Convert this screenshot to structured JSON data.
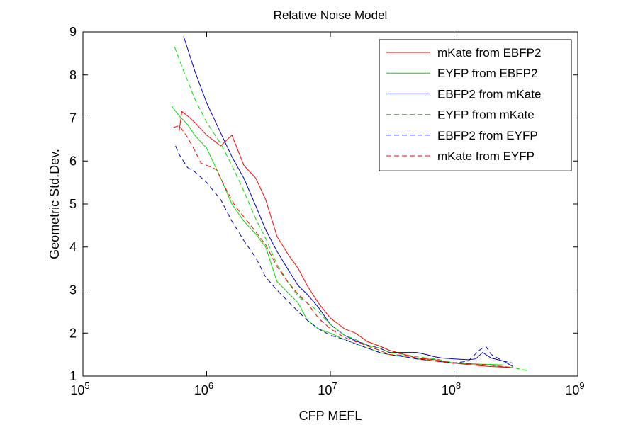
{
  "chart_data": {
    "type": "line",
    "title": "Relative Noise Model",
    "xlabel": "CFP MEFL",
    "ylabel": "Geometric Std.Dev.",
    "xscale": "log",
    "xlim": [
      100000,
      1000000000
    ],
    "ylim": [
      1,
      9
    ],
    "x_tick_labels": [
      {
        "value": 100000,
        "base": "10",
        "exp": "5"
      },
      {
        "value": 1000000,
        "base": "10",
        "exp": "6"
      },
      {
        "value": 10000000,
        "base": "10",
        "exp": "7"
      },
      {
        "value": 100000000,
        "base": "10",
        "exp": "8"
      },
      {
        "value": 1000000000,
        "base": "10",
        "exp": "9"
      }
    ],
    "y_ticks": [
      "1",
      "2",
      "3",
      "4",
      "5",
      "6",
      "7",
      "8",
      "9"
    ],
    "grid": false,
    "legend_position": "top-right",
    "series": [
      {
        "name": "mKate from EBFP2",
        "color": "#ff0000",
        "dash": "solid",
        "x": [
          600000,
          630000,
          700000,
          800000,
          1000000,
          1300000,
          1600000,
          2000000,
          2500000,
          3000000,
          3700000,
          4500000,
          5500000,
          6500000,
          8000000,
          10000000,
          13000000,
          16000000,
          20000000,
          25000000,
          30000000,
          40000000,
          50000000,
          70000000,
          100000000,
          150000000,
          200000000,
          300000000
        ],
        "y": [
          6.7,
          7.15,
          7.05,
          6.9,
          6.6,
          6.35,
          6.6,
          5.9,
          5.6,
          5.1,
          4.25,
          3.85,
          3.5,
          3.1,
          2.7,
          2.35,
          2.1,
          2.0,
          1.8,
          1.7,
          1.6,
          1.5,
          1.42,
          1.38,
          1.3,
          1.25,
          1.22,
          1.2
        ]
      },
      {
        "name": "EYFP from EBFP2",
        "color": "#00dd00",
        "dash": "solid",
        "x": [
          520000,
          600000,
          700000,
          800000,
          1000000,
          1300000,
          1600000,
          2000000,
          2500000,
          3000000,
          3700000,
          4500000,
          5500000,
          6500000,
          8000000,
          10000000,
          13000000,
          16000000,
          20000000,
          25000000,
          30000000,
          40000000,
          50000000,
          70000000,
          100000000,
          150000000,
          200000000,
          300000000
        ],
        "y": [
          7.28,
          7.05,
          6.85,
          6.6,
          6.3,
          5.6,
          5.0,
          4.6,
          4.3,
          4.0,
          3.2,
          2.95,
          2.7,
          2.3,
          2.1,
          2.0,
          1.85,
          1.75,
          1.65,
          1.55,
          1.5,
          1.45,
          1.4,
          1.35,
          1.3,
          1.28,
          1.27,
          1.25
        ]
      },
      {
        "name": "EBFP2 from mKate",
        "color": "#0000cc",
        "dash": "solid",
        "x": [
          650000,
          800000,
          1000000,
          1300000,
          1600000,
          2000000,
          2500000,
          3000000,
          3700000,
          4500000,
          5500000,
          6500000,
          8000000,
          10000000,
          13000000,
          16000000,
          20000000,
          25000000,
          30000000,
          40000000,
          50000000,
          60000000,
          70000000,
          80000000,
          100000000,
          130000000,
          150000000,
          170000000,
          200000000,
          250000000,
          300000000
        ],
        "y": [
          8.9,
          8.1,
          7.35,
          6.65,
          6.1,
          5.6,
          4.95,
          4.4,
          3.9,
          3.5,
          3.1,
          2.9,
          2.6,
          2.2,
          1.95,
          1.82,
          1.72,
          1.65,
          1.55,
          1.55,
          1.55,
          1.5,
          1.45,
          1.42,
          1.4,
          1.38,
          1.4,
          1.55,
          1.42,
          1.35,
          1.22
        ]
      },
      {
        "name": "EYFP from mKate",
        "color": "#00dd00",
        "dash": "dashed",
        "x": [
          550000,
          650000,
          800000,
          1000000,
          1300000,
          1600000,
          2000000,
          2500000,
          3000000,
          3700000,
          4500000,
          5500000,
          6500000,
          8000000,
          10000000,
          13000000,
          16000000,
          20000000,
          25000000,
          30000000,
          40000000,
          50000000,
          70000000,
          100000000,
          150000000,
          200000000,
          300000000,
          400000000
        ],
        "y": [
          8.65,
          8.1,
          7.45,
          6.9,
          6.4,
          5.9,
          5.3,
          4.65,
          4.2,
          3.6,
          3.2,
          2.85,
          2.7,
          2.5,
          2.2,
          1.95,
          1.85,
          1.72,
          1.65,
          1.55,
          1.5,
          1.45,
          1.4,
          1.32,
          1.28,
          1.25,
          1.2,
          1.12
        ]
      },
      {
        "name": "EBFP2 from EYFP",
        "color": "#0000cc",
        "dash": "dashed",
        "x": [
          560000,
          600000,
          700000,
          800000,
          1000000,
          1300000,
          1600000,
          2000000,
          2500000,
          3000000,
          3700000,
          4500000,
          5500000,
          6500000,
          8000000,
          10000000,
          13000000,
          16000000,
          20000000,
          25000000,
          30000000,
          40000000,
          50000000,
          70000000,
          100000000,
          130000000,
          160000000,
          180000000,
          200000000,
          250000000,
          300000000
        ],
        "y": [
          6.35,
          6.15,
          5.85,
          5.75,
          5.5,
          5.1,
          4.6,
          4.15,
          3.75,
          3.3,
          3.0,
          2.75,
          2.5,
          2.3,
          2.1,
          1.95,
          1.85,
          1.75,
          1.65,
          1.55,
          1.5,
          1.45,
          1.4,
          1.35,
          1.3,
          1.35,
          1.6,
          1.7,
          1.5,
          1.35,
          1.3
        ]
      },
      {
        "name": "mKate from EYFP",
        "color": "#ff0000",
        "dash": "dashed",
        "x": [
          540000,
          600000,
          700000,
          800000,
          900000,
          1000000,
          1200000,
          1400000,
          1700000,
          2000000,
          2500000,
          3000000,
          3700000,
          4500000,
          5500000,
          6500000,
          8000000,
          10000000,
          13000000,
          16000000,
          20000000,
          25000000,
          30000000,
          40000000,
          50000000,
          70000000,
          100000000,
          150000000,
          200000000,
          300000000
        ],
        "y": [
          6.78,
          6.82,
          6.55,
          6.25,
          5.95,
          5.9,
          5.8,
          5.4,
          4.95,
          4.7,
          4.35,
          4.05,
          3.55,
          3.2,
          2.9,
          2.7,
          2.35,
          2.1,
          1.9,
          1.8,
          1.7,
          1.6,
          1.5,
          1.48,
          1.42,
          1.35,
          1.3,
          1.28,
          1.25,
          1.2
        ]
      }
    ]
  }
}
